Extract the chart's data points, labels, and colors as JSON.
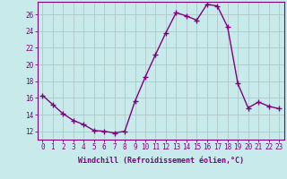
{
  "x": [
    0,
    1,
    2,
    3,
    4,
    5,
    6,
    7,
    8,
    9,
    10,
    11,
    12,
    13,
    14,
    15,
    16,
    17,
    18,
    19,
    20,
    21,
    22,
    23
  ],
  "y": [
    16.3,
    15.2,
    14.1,
    13.3,
    12.8,
    12.1,
    12.0,
    11.8,
    12.0,
    15.6,
    18.5,
    21.2,
    23.8,
    26.2,
    25.8,
    25.3,
    27.2,
    27.0,
    24.5,
    17.7,
    14.8,
    15.5,
    15.0,
    14.7
  ],
  "line_color": "#800080",
  "marker": "+",
  "markersize": 4,
  "linewidth": 1.0,
  "bg_color": "#c8eaea",
  "grid_color": "#b0c8c8",
  "xlabel": "Windchill (Refroidissement éolien,°C)",
  "ylabel": "",
  "xlim": [
    -0.5,
    23.5
  ],
  "ylim": [
    11.0,
    27.5
  ],
  "yticks": [
    12,
    14,
    16,
    18,
    20,
    22,
    24,
    26
  ],
  "xticks": [
    0,
    1,
    2,
    3,
    4,
    5,
    6,
    7,
    8,
    9,
    10,
    11,
    12,
    13,
    14,
    15,
    16,
    17,
    18,
    19,
    20,
    21,
    22,
    23
  ],
  "label_fontsize": 6.0,
  "tick_fontsize": 5.5
}
